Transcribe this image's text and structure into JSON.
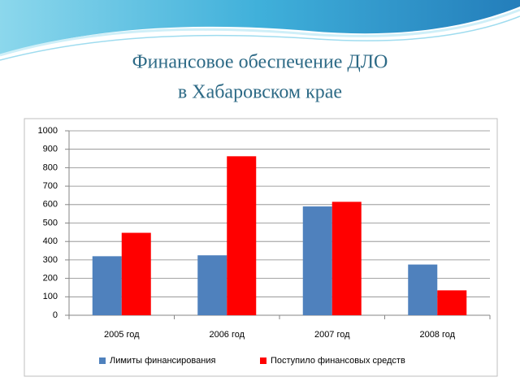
{
  "chart_data": {
    "type": "bar",
    "title": [
      "Финансовое обеспечение ДЛО",
      "в Хабаровском крае"
    ],
    "categories": [
      "2005 год",
      "2006 год",
      "2007 год",
      "2008 год"
    ],
    "series": [
      {
        "name": "Лимиты финансирования",
        "color": "#4f81bd",
        "values": [
          320,
          325,
          590,
          275
        ]
      },
      {
        "name": "Поступило финансовых средств",
        "color": "#ff0000",
        "values": [
          447,
          862,
          615,
          135
        ]
      }
    ],
    "ylim": [
      0,
      1000
    ],
    "yticks": [
      0,
      100,
      200,
      300,
      400,
      500,
      600,
      700,
      800,
      900,
      1000
    ],
    "grid": true,
    "legend": "bottom"
  }
}
